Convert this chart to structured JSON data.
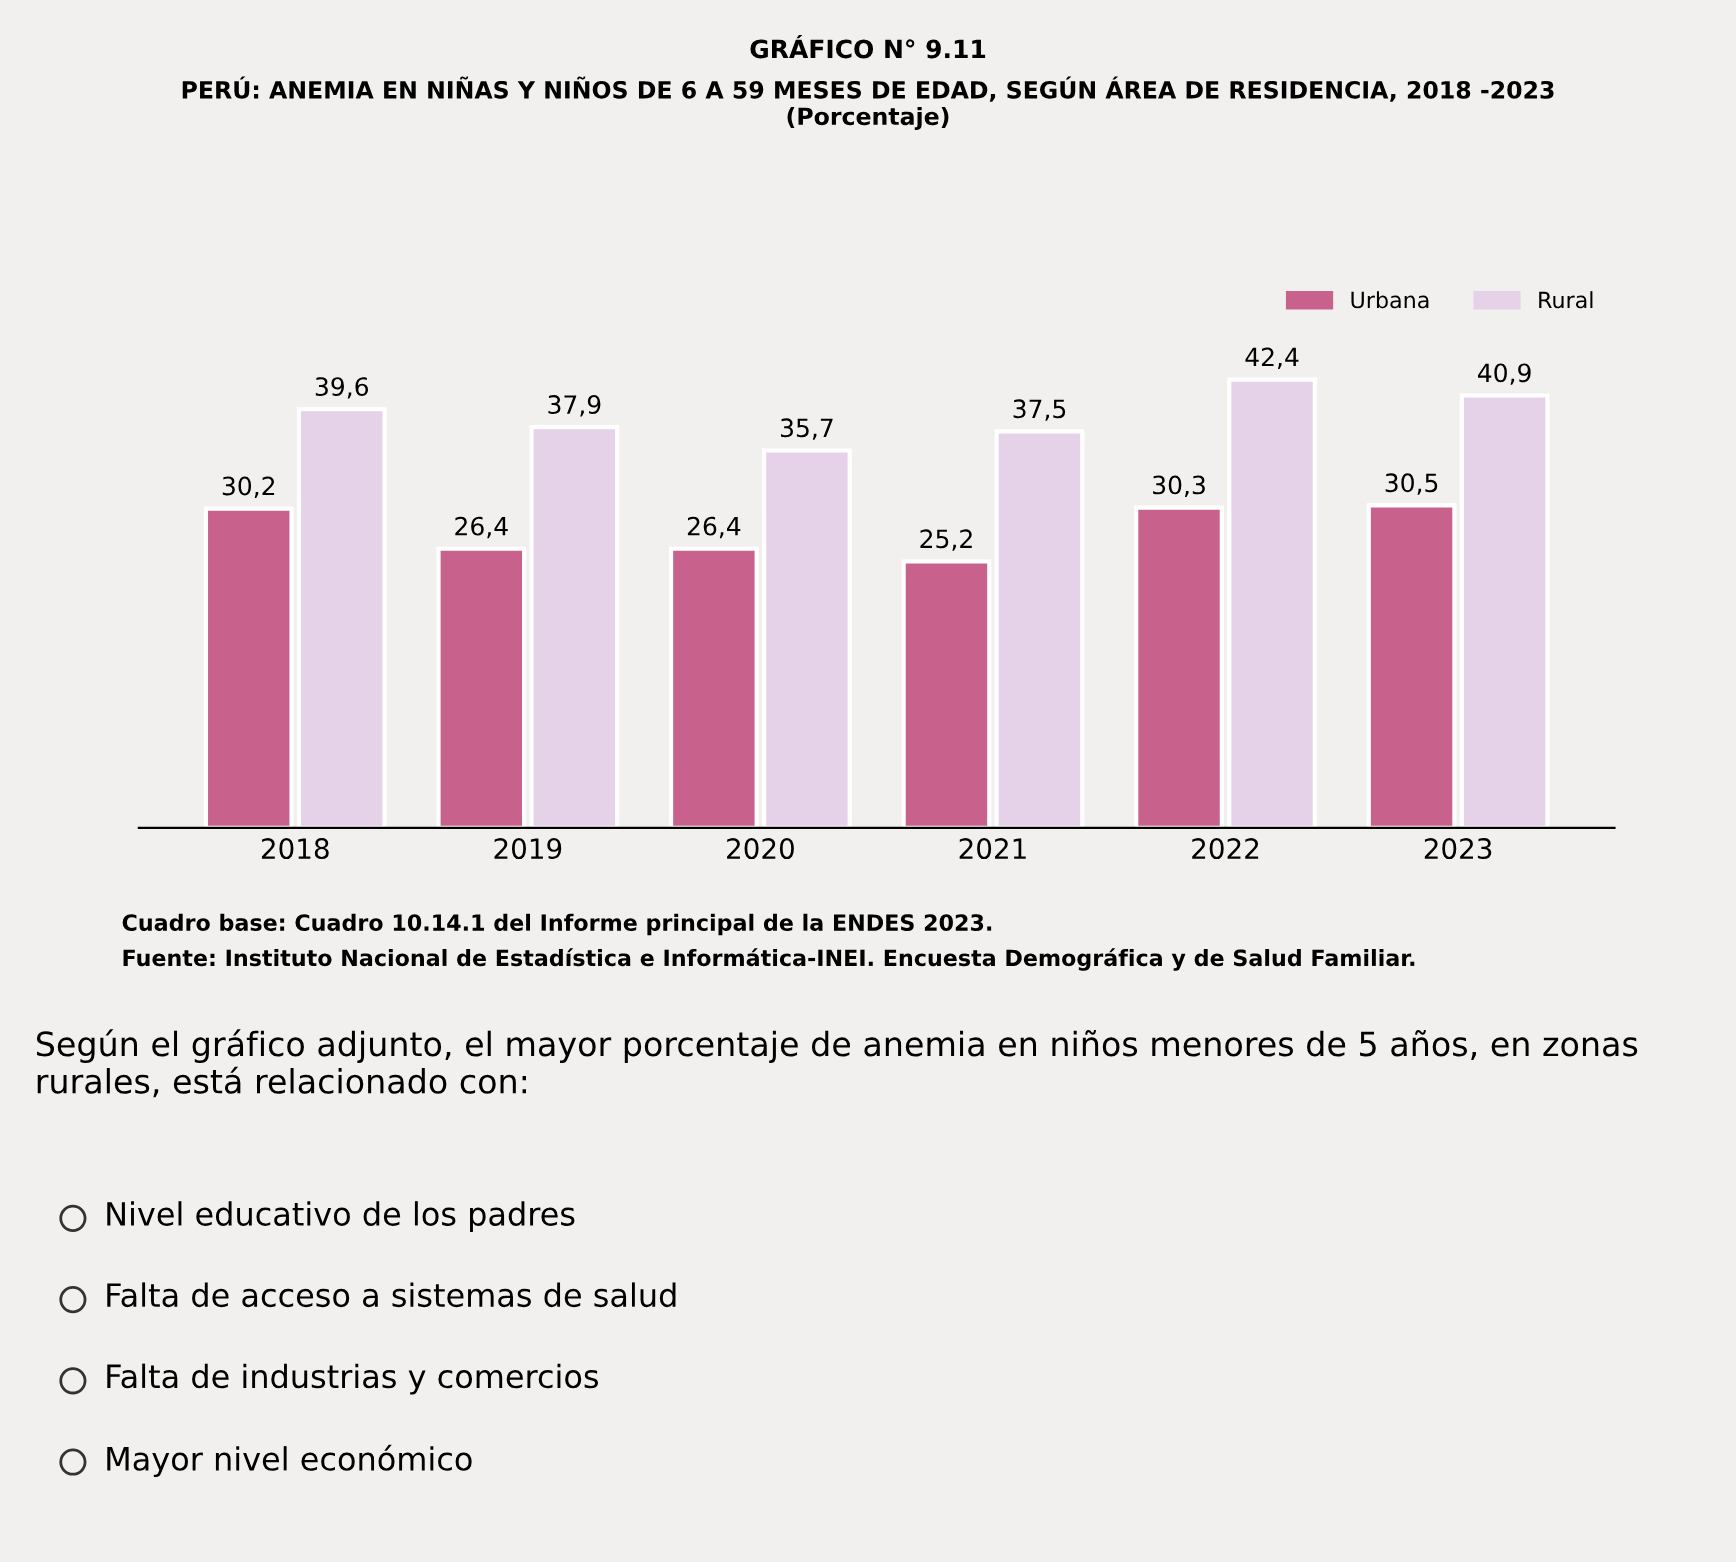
{
  "chart_data": {
    "type": "bar",
    "title": "GRÁFICO N° 9.11",
    "subtitle": "PERÚ: ANEMIA EN NIÑAS Y NIÑOS DE 6 A 59 MESES DE EDAD, SEGÚN ÁREA DE RESIDENCIA, 2018 -2023\n(Porcentaje)",
    "categories": [
      "2018",
      "2019",
      "2020",
      "2021",
      "2022",
      "2023"
    ],
    "series": [
      {
        "name": "Urbana",
        "color": "#c8628c",
        "values": [
          30.2,
          26.4,
          26.4,
          25.2,
          30.3,
          30.5
        ],
        "value_labels": [
          "30,2",
          "26,4",
          "26,4",
          "25,2",
          "30,3",
          "30,5"
        ]
      },
      {
        "name": "Rural",
        "color": "#e6d2e8",
        "values": [
          39.6,
          37.9,
          35.7,
          37.5,
          42.4,
          40.9
        ],
        "value_labels": [
          "39,6",
          "37,9",
          "35,7",
          "37,5",
          "42,4",
          "40,9"
        ]
      }
    ],
    "legend": "top right",
    "grid": false,
    "annotations": [
      "Cuadro base: Cuadro 10.14.1 del Informe principal de la ENDES 2023.",
      "Fuente: Instituto Nacional de Estadística e Informática-INEI. Encuesta Demográfica y de Salud Familiar.",
      "Según el gráfico adjunto, el mayor porcentaje de anemia en niños menores de 5 años, en zonas rurales, está relacionado con:",
      "Nivel educativo de los padres",
      "Falta de acceso a sistemas de salud",
      "Falta de industrias y comercios",
      "Mayor nivel económico"
    ]
  }
}
